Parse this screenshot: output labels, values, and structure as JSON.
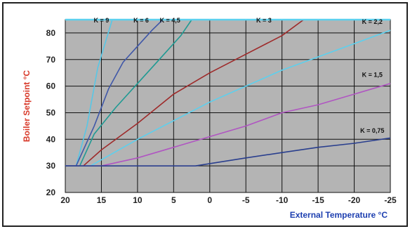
{
  "chart_data": {
    "type": "line",
    "title": "",
    "xlabel": "External Temperature °C",
    "ylabel": "Boiler Setpoint °C",
    "xlim": [
      20,
      -25
    ],
    "ylim": [
      20,
      85
    ],
    "x_ticks": [
      20,
      15,
      10,
      5,
      0,
      -5,
      -10,
      -15,
      -20,
      -25
    ],
    "y_ticks": [
      20,
      30,
      40,
      50,
      60,
      70,
      80
    ],
    "grid": true,
    "colors": {
      "plot_background": "#b4b4b4",
      "gridline": "#111111",
      "top_limit_line": "#5cd0ee",
      "axis_title": "#1d3fb0",
      "ylabel_color": "#d83a2a"
    },
    "series": [
      {
        "name": "K = 9",
        "color": "#57c7e6",
        "x": [
          20,
          18.5,
          17,
          15.5,
          13.5
        ],
        "y": [
          30,
          30,
          45,
          67,
          85
        ]
      },
      {
        "name": "K = 6",
        "color": "#3f57a8",
        "x": [
          20,
          18.5,
          16,
          14,
          12,
          10,
          8,
          6.5
        ],
        "y": [
          30,
          30,
          45,
          59,
          69,
          75,
          81,
          85
        ]
      },
      {
        "name": "K = 4.5",
        "color": "#1f9a93",
        "x": [
          20,
          18,
          16,
          13,
          10,
          7,
          4,
          2.5
        ],
        "y": [
          30,
          30,
          42,
          52,
          61,
          70,
          79,
          85
        ]
      },
      {
        "name": "K = 3",
        "color": "#9e2a2a",
        "x": [
          20,
          17.5,
          15,
          10,
          5,
          0,
          -5,
          -10,
          -13
        ],
        "y": [
          30,
          30,
          36,
          46,
          57,
          65,
          72,
          79,
          85
        ]
      },
      {
        "name": "K = 2.2",
        "color": "#5cd0ee",
        "x": [
          20,
          16.5,
          10,
          5,
          0,
          -5,
          -10,
          -15,
          -20,
          -25
        ],
        "y": [
          30,
          30,
          40,
          47,
          54,
          60,
          66,
          71,
          76,
          81
        ]
      },
      {
        "name": "K = 1.5",
        "color": "#b055c2",
        "x": [
          20,
          15,
          10,
          5,
          0,
          -5,
          -10,
          -15,
          -20,
          -25
        ],
        "y": [
          30,
          30,
          33,
          37,
          41,
          45,
          50,
          53,
          57,
          61
        ]
      },
      {
        "name": "K = 0.75",
        "color": "#2a3f8e",
        "x": [
          20,
          15,
          5,
          2,
          -5,
          -10,
          -15,
          -20,
          -25
        ],
        "y": [
          30,
          30,
          30,
          30,
          33,
          35,
          37,
          38.5,
          40.5
        ]
      }
    ],
    "labels": [
      {
        "text": "K = 9",
        "x": 15,
        "y": 85
      },
      {
        "text": "K = 6",
        "x": 9.5,
        "y": 85
      },
      {
        "text": "K = 4,5",
        "x": 5.5,
        "y": 85
      },
      {
        "text": "K = 3",
        "x": -7.5,
        "y": 85
      },
      {
        "text": "K = 2,2",
        "x": -22.5,
        "y": 84.5
      },
      {
        "text": "K = 1,5",
        "x": -22.5,
        "y": 64.5
      },
      {
        "text": "K = 0,75",
        "x": -22.5,
        "y": 43.5
      }
    ]
  }
}
